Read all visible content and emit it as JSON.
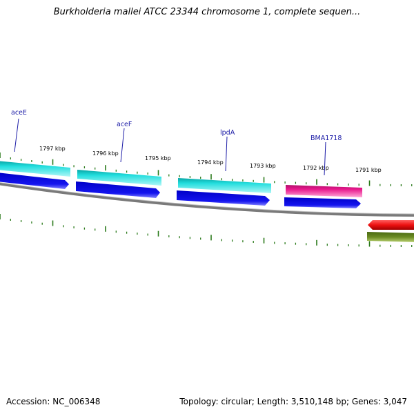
{
  "title": "Burkholderia mallei ATCC 23344 chromosome 1, complete sequen...",
  "footer": {
    "accession": "Accession: NC_006348",
    "topology": "Topology: circular; Length: 3,510,148 bp; Genes: 3,047"
  },
  "colors": {
    "backbone": "#7a7a7a",
    "tick": "#2a7a1a",
    "gene_label_line": "#1a1aa6",
    "cds_cyan": "#22dede",
    "cds_blue": "#1010e8",
    "cds_magenta": "#e8188c",
    "rev_red": "#ee1111",
    "rev_olive": "#6a8a22"
  },
  "tick_labels": [
    "1797 kbp",
    "1796 kbp",
    "1795 kbp",
    "1794 kbp",
    "1793 kbp",
    "1792 kbp",
    "1791 kbp"
  ],
  "gene_labels": [
    "aceE",
    "aceF",
    "lpdA",
    "BMA1718"
  ]
}
